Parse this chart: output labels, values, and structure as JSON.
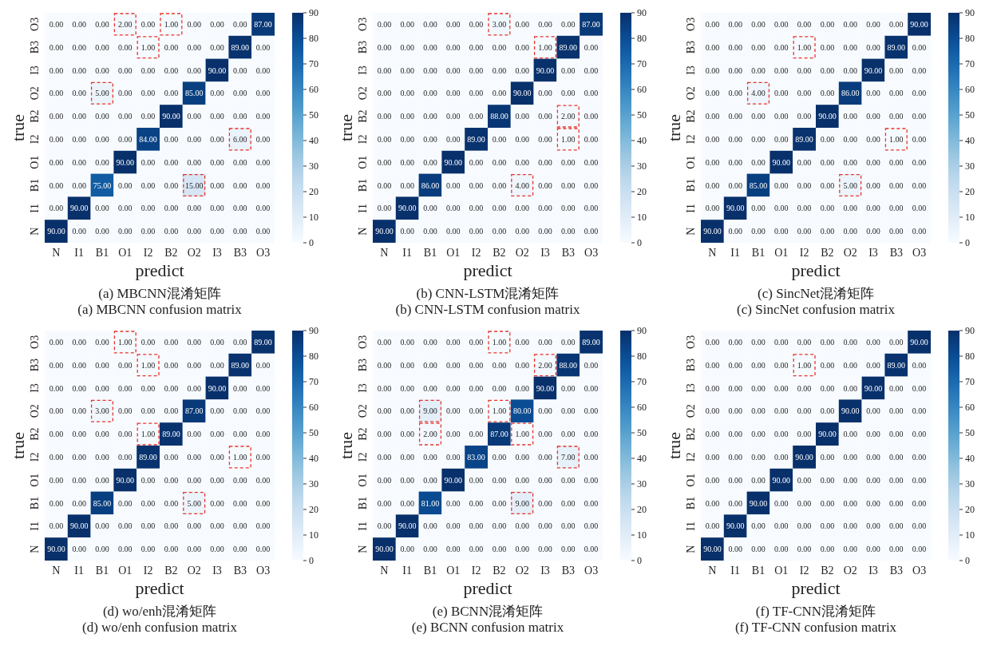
{
  "chart_data": [
    {
      "type": "heatmap",
      "title": "(a) MBCNN混淆矩阵",
      "subtitle": "(a) MBCNN confusion matrix",
      "xlabel": "predict",
      "ylabel": "true",
      "categories": [
        "N",
        "I1",
        "B1",
        "O1",
        "I2",
        "B2",
        "O2",
        "I3",
        "B3",
        "O3"
      ],
      "y_categories": [
        "O3",
        "B3",
        "I3",
        "O2",
        "B2",
        "I2",
        "O1",
        "B1",
        "I1",
        "N"
      ],
      "clim": [
        0,
        90
      ],
      "cticks": [
        0,
        10,
        20,
        30,
        40,
        50,
        60,
        70,
        80,
        90
      ],
      "cells": [
        [
          0,
          0,
          0,
          2,
          0,
          1,
          0,
          0,
          0,
          87
        ],
        [
          0,
          0,
          0,
          0,
          1,
          0,
          0,
          0,
          89,
          0
        ],
        [
          0,
          0,
          0,
          0,
          0,
          0,
          0,
          90,
          0,
          0
        ],
        [
          0,
          0,
          5,
          0,
          0,
          0,
          85,
          0,
          0,
          0
        ],
        [
          0,
          0,
          0,
          0,
          0,
          90,
          0,
          0,
          0,
          0
        ],
        [
          0,
          0,
          0,
          0,
          84,
          0,
          0,
          0,
          6,
          0
        ],
        [
          0,
          0,
          0,
          90,
          0,
          0,
          0,
          0,
          0,
          0
        ],
        [
          0,
          0,
          75,
          0,
          0,
          0,
          15,
          0,
          0,
          0
        ],
        [
          0,
          90,
          0,
          0,
          0,
          0,
          0,
          0,
          0,
          0
        ],
        [
          90,
          0,
          0,
          0,
          0,
          0,
          0,
          0,
          0,
          0
        ]
      ],
      "cell_labels": [
        [
          "0.00",
          "0.00",
          "0.00",
          "2.00",
          "0.00",
          "1.00",
          "0.00",
          "0.00",
          "0.00",
          "87.00"
        ],
        [
          "0.00",
          "0.00",
          "0.00",
          "0.00",
          "1.00",
          "0.00",
          "0.00",
          "0.00",
          "89.00",
          "0.00"
        ],
        [
          "0.00",
          "0.00",
          "0.00",
          "0.00",
          "0.00",
          "0.00",
          "0.00",
          "90.00",
          "0.00",
          "0.00"
        ],
        [
          "0.00",
          "0.00",
          "5.00",
          "0.00",
          "0.00",
          "0.00",
          "85.00",
          "0.00",
          "0.00",
          "0.00"
        ],
        [
          "0.00",
          "0.00",
          "0.00",
          "0.00",
          "0.00",
          "90.00",
          "0.00",
          "0.00",
          "0.00",
          "0.00"
        ],
        [
          "0.00",
          "0.00",
          "0.00",
          "0.00",
          "84.00",
          "0.00",
          "0.00",
          "0.00",
          "6.00",
          "0.00"
        ],
        [
          "0.00",
          "0.00",
          "0.00",
          "90.00",
          "0.00",
          "0.00",
          "0.00",
          "0.00",
          "0.00",
          "0.00"
        ],
        [
          "0.00",
          "0.00",
          "75.00",
          "0.00",
          "0.00",
          "0.00",
          "15.00",
          "0.00",
          "0.00",
          "0.00"
        ],
        [
          "0.00",
          "90.00",
          "0.00",
          "0.00",
          "0.00",
          "0.00",
          "0.00",
          "0.00",
          "0.00",
          "0.00"
        ],
        [
          "90.00",
          "0.00",
          "0.00",
          "0.00",
          "0.00",
          "0.00",
          "0.00",
          "0.00",
          "0.00",
          "0.00"
        ]
      ]
    },
    {
      "type": "heatmap",
      "title": "(b) CNN-LSTM混淆矩阵",
      "subtitle": "(b) CNN-LSTM confusion matrix",
      "xlabel": "predict",
      "ylabel": "true",
      "categories": [
        "N",
        "I1",
        "B1",
        "O1",
        "I2",
        "B2",
        "O2",
        "I3",
        "B3",
        "O3"
      ],
      "y_categories": [
        "O3",
        "B3",
        "I3",
        "O2",
        "B2",
        "I2",
        "O1",
        "B1",
        "I1",
        "N"
      ],
      "clim": [
        0,
        90
      ],
      "cticks": [
        0,
        10,
        20,
        30,
        40,
        50,
        60,
        70,
        80,
        90
      ],
      "cells": [
        [
          0,
          0,
          0,
          0,
          0,
          3,
          0,
          0,
          0,
          87
        ],
        [
          0,
          0,
          0,
          0,
          0,
          0,
          0,
          1,
          89,
          0
        ],
        [
          0,
          0,
          0,
          0,
          0,
          0,
          0,
          90,
          0,
          0
        ],
        [
          0,
          0,
          0,
          0,
          0,
          0,
          90,
          0,
          0,
          0
        ],
        [
          0,
          0,
          0,
          0,
          0,
          88,
          0,
          0,
          2,
          0
        ],
        [
          0,
          0,
          0,
          0,
          89,
          0,
          0,
          0,
          1,
          0
        ],
        [
          0,
          0,
          0,
          90,
          0,
          0,
          0,
          0,
          0,
          0
        ],
        [
          0,
          0,
          86,
          0,
          0,
          0,
          4,
          0,
          0,
          0
        ],
        [
          0,
          90,
          0,
          0,
          0,
          0,
          0,
          0,
          0,
          0
        ],
        [
          90,
          0,
          0,
          0,
          0,
          0,
          0,
          0,
          0,
          0
        ]
      ],
      "cell_labels": [
        [
          "0.00",
          "0.00",
          "0.00",
          "0.00",
          "0.00",
          "3.00",
          "0.00",
          "0.00",
          "0.00",
          "87.00"
        ],
        [
          "0.00",
          "0.00",
          "0.00",
          "0.00",
          "0.00",
          "0.00",
          "0.00",
          "1.00",
          "89.00",
          "0.00"
        ],
        [
          "0.00",
          "0.00",
          "0.00",
          "0.00",
          "0.00",
          "0.00",
          "0.00",
          "90.00",
          "0.00",
          "0.00"
        ],
        [
          "0.00",
          "0.00",
          "0.00",
          "0.00",
          "0.00",
          "0.00",
          "90.00",
          "0.00",
          "0.00",
          "0.00"
        ],
        [
          "0.00",
          "0.00",
          "0.00",
          "0.00",
          "0.00",
          "88.00",
          "0.00",
          "0.00",
          "2.00",
          "0.00"
        ],
        [
          "0.00",
          "0.00",
          "0.00",
          "0.00",
          "89.00",
          "0.00",
          "0.00",
          "0.00",
          "1.00",
          "0.00"
        ],
        [
          "0.00",
          "0.00",
          "0.00",
          "90.00",
          "0.00",
          "0.00",
          "0.00",
          "0.00",
          "0.00",
          "0.00"
        ],
        [
          "0.00",
          "0.00",
          "86.00",
          "0.00",
          "0.00",
          "0.00",
          "4.00",
          "0.00",
          "0.00",
          "0.00"
        ],
        [
          "0.00",
          "90.00",
          "0.00",
          "0.00",
          "0.00",
          "0.00",
          "0.00",
          "0.00",
          "0.00",
          "0.00"
        ],
        [
          "90.00",
          "0.00",
          "0.00",
          "0.00",
          "0.00",
          "0.00",
          "0.00",
          "0.00",
          "0.00",
          "0.00"
        ]
      ]
    },
    {
      "type": "heatmap",
      "title": "(c) SincNet混淆矩阵",
      "subtitle": "(c) SincNet confusion matrix",
      "xlabel": "predict",
      "ylabel": "true",
      "categories": [
        "N",
        "I1",
        "B1",
        "O1",
        "I2",
        "B2",
        "O2",
        "I3",
        "B3",
        "O3"
      ],
      "y_categories": [
        "O3",
        "B3",
        "I3",
        "O2",
        "B2",
        "I2",
        "O1",
        "B1",
        "I1",
        "N"
      ],
      "clim": [
        0,
        90
      ],
      "cticks": [
        0,
        10,
        20,
        30,
        40,
        50,
        60,
        70,
        80,
        90
      ],
      "cells": [
        [
          0,
          0,
          0,
          0,
          0,
          0,
          0,
          0,
          0,
          90
        ],
        [
          0,
          0,
          0,
          0,
          1,
          0,
          0,
          0,
          89,
          0
        ],
        [
          0,
          0,
          0,
          0,
          0,
          0,
          0,
          90,
          0,
          0
        ],
        [
          0,
          0,
          4,
          0,
          0,
          0,
          86,
          0,
          0,
          0
        ],
        [
          0,
          0,
          0,
          0,
          0,
          90,
          0,
          0,
          0,
          0
        ],
        [
          0,
          0,
          0,
          0,
          89,
          0,
          0,
          0,
          1,
          0
        ],
        [
          0,
          0,
          0,
          90,
          0,
          0,
          0,
          0,
          0,
          0
        ],
        [
          0,
          0,
          85,
          0,
          0,
          0,
          5,
          0,
          0,
          0
        ],
        [
          0,
          90,
          0,
          0,
          0,
          0,
          0,
          0,
          0,
          0
        ],
        [
          90,
          0,
          0,
          0,
          0,
          0,
          0,
          0,
          0,
          0
        ]
      ],
      "cell_labels": [
        [
          "0.00",
          "0.00",
          "0.00",
          "0.00",
          "0.00",
          "0.00",
          "0.00",
          "0.00",
          "0.00",
          "90.00"
        ],
        [
          "0.00",
          "0.00",
          "0.00",
          "0.00",
          "1.00",
          "0.00",
          "0.00",
          "0.00",
          "89.00",
          "0.00"
        ],
        [
          "0.00",
          "0.00",
          "0.00",
          "0.00",
          "0.00",
          "0.00",
          "0.00",
          "90.00",
          "0.00",
          "0.00"
        ],
        [
          "0.00",
          "0.00",
          "4.00",
          "0.00",
          "0.00",
          "0.00",
          "86.00",
          "0.00",
          "0.00",
          "0.00"
        ],
        [
          "0.00",
          "0.00",
          "0.00",
          "0.00",
          "0.00",
          "90.00",
          "0.00",
          "0.00",
          "0.00",
          "0.00"
        ],
        [
          "0.00",
          "0.00",
          "0.00",
          "0.00",
          "89.00",
          "0.00",
          "0.00",
          "0.00",
          "1.00",
          "0.00"
        ],
        [
          "0.00",
          "0.00",
          "0.00",
          "90.00",
          "0.00",
          "0.00",
          "0.00",
          "0.00",
          "0.00",
          "0.00"
        ],
        [
          "0.00",
          "0.00",
          "85.00",
          "0.00",
          "0.00",
          "0.00",
          "5.00",
          "0.00",
          "0.00",
          "0.00"
        ],
        [
          "0.00",
          "90.00",
          "0.00",
          "0.00",
          "0.00",
          "0.00",
          "0.00",
          "0.00",
          "0.00",
          "0.00"
        ],
        [
          "90.00",
          "0.00",
          "0.00",
          "0.00",
          "0.00",
          "0.00",
          "0.00",
          "0.00",
          "0.00",
          "0.00"
        ]
      ]
    },
    {
      "type": "heatmap",
      "title": "(d) wo/enh混淆矩阵",
      "subtitle": "(d) wo/enh confusion matrix",
      "xlabel": "predict",
      "ylabel": "true",
      "categories": [
        "N",
        "I1",
        "B1",
        "O1",
        "I2",
        "B2",
        "O2",
        "I3",
        "B3",
        "O3"
      ],
      "y_categories": [
        "O3",
        "B3",
        "I3",
        "O2",
        "B2",
        "I2",
        "O1",
        "B1",
        "I1",
        "N"
      ],
      "clim": [
        0,
        90
      ],
      "cticks": [
        0,
        10,
        20,
        30,
        40,
        50,
        60,
        70,
        80,
        90
      ],
      "cells": [
        [
          0,
          0,
          0,
          1,
          0,
          0,
          0,
          0,
          0,
          89
        ],
        [
          0,
          0,
          0,
          0,
          1,
          0,
          0,
          0,
          89,
          0
        ],
        [
          0,
          0,
          0,
          0,
          0,
          0,
          0,
          90,
          0,
          0
        ],
        [
          0,
          0,
          3,
          0,
          0,
          0,
          87,
          0,
          0,
          0
        ],
        [
          0,
          0,
          0,
          0,
          1,
          89,
          0,
          0,
          0,
          0
        ],
        [
          0,
          0,
          0,
          0,
          89,
          0,
          0,
          0,
          1,
          0
        ],
        [
          0,
          0,
          0,
          90,
          0,
          0,
          0,
          0,
          0,
          0
        ],
        [
          0,
          0,
          85,
          0,
          0,
          0,
          5,
          0,
          0,
          0
        ],
        [
          0,
          90,
          0,
          0,
          0,
          0,
          0,
          0,
          0,
          0
        ],
        [
          90,
          0,
          0,
          0,
          0,
          0,
          0,
          0,
          0,
          0
        ]
      ],
      "cell_labels": [
        [
          "0.00",
          "0.00",
          "0.00",
          "1.00",
          "0.00",
          "0.00",
          "0.00",
          "0.00",
          "0.00",
          "89.00"
        ],
        [
          "0.00",
          "0.00",
          "0.00",
          "0.00",
          "1.00",
          "0.00",
          "0.00",
          "0.00",
          "89.00",
          "0.00"
        ],
        [
          "0.00",
          "0.00",
          "0.00",
          "0.00",
          "0.00",
          "0.00",
          "0.00",
          "90.00",
          "0.00",
          "0.00"
        ],
        [
          "0.00",
          "0.00",
          "3.00",
          "0.00",
          "0.00",
          "0.00",
          "87.00",
          "0.00",
          "0.00",
          "0.00"
        ],
        [
          "0.00",
          "0.00",
          "0.00",
          "0.00",
          "1.00",
          "89.00",
          "0.00",
          "0.00",
          "0.00",
          "0.00"
        ],
        [
          "0.00",
          "0.00",
          "0.00",
          "0.00",
          "89.00",
          "0.00",
          "0.00",
          "0.00",
          "1.00",
          "0.00"
        ],
        [
          "0.00",
          "0.00",
          "0.00",
          "90.00",
          "0.00",
          "0.00",
          "0.00",
          "0.00",
          "0.00",
          "0.00"
        ],
        [
          "0.00",
          "0.00",
          "85.00",
          "0.00",
          "0.00",
          "0.00",
          "5.00",
          "0.00",
          "0.00",
          "0.00"
        ],
        [
          "0.00",
          "90.00",
          "0.00",
          "0.00",
          "0.00",
          "0.00",
          "0.00",
          "0.00",
          "0.00",
          "0.00"
        ],
        [
          "90.00",
          "0.00",
          "0.00",
          "0.00",
          "0.00",
          "0.00",
          "0.00",
          "0.00",
          "0.00",
          "0.00"
        ]
      ]
    },
    {
      "type": "heatmap",
      "title": "(e) BCNN混淆矩阵",
      "subtitle": "(e) BCNN confusion matrix",
      "xlabel": "predict",
      "ylabel": "true",
      "categories": [
        "N",
        "I1",
        "B1",
        "O1",
        "I2",
        "B2",
        "O2",
        "I3",
        "B3",
        "O3"
      ],
      "y_categories": [
        "O3",
        "B3",
        "I3",
        "O2",
        "B2",
        "I2",
        "O1",
        "B1",
        "I1",
        "N"
      ],
      "clim": [
        0,
        90
      ],
      "cticks": [
        0,
        10,
        20,
        30,
        40,
        50,
        60,
        70,
        80,
        90
      ],
      "cells": [
        [
          0,
          0,
          0,
          0,
          0,
          1,
          0,
          0,
          0,
          89
        ],
        [
          0,
          0,
          0,
          0,
          0,
          0,
          0,
          2,
          88,
          0
        ],
        [
          0,
          0,
          0,
          0,
          0,
          0,
          0,
          90,
          0,
          0
        ],
        [
          0,
          0,
          9,
          0,
          0,
          1,
          80,
          0,
          0,
          0
        ],
        [
          0,
          0,
          2,
          0,
          0,
          87,
          1,
          0,
          0,
          0
        ],
        [
          0,
          0,
          0,
          0,
          83,
          0,
          0,
          0,
          7,
          0
        ],
        [
          0,
          0,
          0,
          90,
          0,
          0,
          0,
          0,
          0,
          0
        ],
        [
          0,
          0,
          81,
          0,
          0,
          0,
          9,
          0,
          0,
          0
        ],
        [
          0,
          90,
          0,
          0,
          0,
          0,
          0,
          0,
          0,
          0
        ],
        [
          90,
          0,
          0,
          0,
          0,
          0,
          0,
          0,
          0,
          0
        ]
      ],
      "cell_labels": [
        [
          "0.00",
          "0.00",
          "0.00",
          "0.00",
          "0.00",
          "1.00",
          "0.00",
          "0.00",
          "0.00",
          "89.00"
        ],
        [
          "0.00",
          "0.00",
          "0.00",
          "0.00",
          "0.00",
          "0.00",
          "0.00",
          "2.00",
          "88.00",
          "0.00"
        ],
        [
          "0.00",
          "0.00",
          "0.00",
          "0.00",
          "0.00",
          "0.00",
          "0.00",
          "90.00",
          "0.00",
          "0.00"
        ],
        [
          "0.00",
          "0.00",
          "9.00",
          "0.00",
          "0.00",
          "1.00",
          "80.00",
          "0.00",
          "0.00",
          "0.00"
        ],
        [
          "0.00",
          "0.00",
          "2.00",
          "0.00",
          "0.00",
          "87.00",
          "1.00",
          "0.00",
          "0.00",
          "0.00"
        ],
        [
          "0.00",
          "0.00",
          "0.00",
          "0.00",
          "83.00",
          "0.00",
          "0.00",
          "0.00",
          "7.00",
          "0.00"
        ],
        [
          "0.00",
          "0.00",
          "0.00",
          "90.00",
          "0.00",
          "0.00",
          "0.00",
          "0.00",
          "0.00",
          "0.00"
        ],
        [
          "0.00",
          "0.00",
          "81.00",
          "0.00",
          "0.00",
          "0.00",
          "9.00",
          "0.00",
          "0.00",
          "0.00"
        ],
        [
          "0.00",
          "90.00",
          "0.00",
          "0.00",
          "0.00",
          "0.00",
          "0.00",
          "0.00",
          "0.00",
          "0.00"
        ],
        [
          "90.00",
          "0.00",
          "0.00",
          "0.00",
          "0.00",
          "0.00",
          "0.00",
          "0.00",
          "0.00",
          "0.00"
        ]
      ]
    },
    {
      "type": "heatmap",
      "title": "(f) TF-CNN混淆矩阵",
      "subtitle": "(f) TF-CNN confusion matrix",
      "xlabel": "predict",
      "ylabel": "true",
      "categories": [
        "N",
        "I1",
        "B1",
        "O1",
        "I2",
        "B2",
        "O2",
        "I3",
        "B3",
        "O3"
      ],
      "y_categories": [
        "O3",
        "B3",
        "I3",
        "O2",
        "B2",
        "I2",
        "O1",
        "B1",
        "I1",
        "N"
      ],
      "clim": [
        0,
        90
      ],
      "cticks": [
        0,
        10,
        20,
        30,
        40,
        50,
        60,
        70,
        80,
        90
      ],
      "cells": [
        [
          0,
          0,
          0,
          0,
          0,
          0,
          0,
          0,
          0,
          90
        ],
        [
          0,
          0,
          0,
          0,
          1,
          0,
          0,
          0,
          89,
          0
        ],
        [
          0,
          0,
          0,
          0,
          0,
          0,
          0,
          90,
          0,
          0
        ],
        [
          0,
          0,
          0,
          0,
          0,
          0,
          90,
          0,
          0,
          0
        ],
        [
          0,
          0,
          0,
          0,
          0,
          90,
          0,
          0,
          0,
          0
        ],
        [
          0,
          0,
          0,
          0,
          90,
          0,
          0,
          0,
          0,
          0
        ],
        [
          0,
          0,
          0,
          90,
          0,
          0,
          0,
          0,
          0,
          0
        ],
        [
          0,
          0,
          90,
          0,
          0,
          0,
          0,
          0,
          0,
          0
        ],
        [
          0,
          90,
          0,
          0,
          0,
          0,
          0,
          0,
          0,
          0
        ],
        [
          90,
          0,
          0,
          0,
          0,
          0,
          0,
          0,
          0,
          0
        ]
      ],
      "cell_labels": [
        [
          "0.00",
          "0.00",
          "0.00",
          "0.00",
          "0.00",
          "0.00",
          "0.00",
          "0.00",
          "0.00",
          "90.00"
        ],
        [
          "0.00",
          "0.00",
          "0.00",
          "0.00",
          "1.00",
          "0.00",
          "0.00",
          "0.00",
          "89.00",
          "0.00"
        ],
        [
          "0.00",
          "0.00",
          "0.00",
          "0.00",
          "0.00",
          "0.00",
          "0.00",
          "90.00",
          "0.00",
          "0.00"
        ],
        [
          "0.00",
          "0.00",
          "0.00",
          "0.00",
          "0.00",
          "0.00",
          "90.00",
          "0.00",
          "0.00",
          "0.00"
        ],
        [
          "0.00",
          "0.00",
          "0.00",
          "0.00",
          "0.00",
          "90.00",
          "0.00",
          "0.00",
          "0.00",
          "0.00"
        ],
        [
          "0.00",
          "0.00",
          "0.00",
          "0.00",
          "90.00",
          "0.00",
          "0.00",
          "0.00",
          "0.00",
          "0.00"
        ],
        [
          "0.00",
          "0.00",
          "0.00",
          "90.00",
          "0.00",
          "0.00",
          "0.00",
          "0.00",
          "0.00",
          "0.00"
        ],
        [
          "0.00",
          "0.00",
          "90.00",
          "0.00",
          "0.00",
          "0.00",
          "0.00",
          "0.00",
          "0.00",
          "0.00"
        ],
        [
          "0.00",
          "90.00",
          "0.00",
          "0.00",
          "0.00",
          "0.00",
          "0.00",
          "0.00",
          "0.00",
          "0.00"
        ],
        [
          "90.00",
          "0.00",
          "0.00",
          "0.00",
          "0.00",
          "0.00",
          "0.00",
          "0.00",
          "0.00",
          "0.00"
        ]
      ]
    }
  ]
}
